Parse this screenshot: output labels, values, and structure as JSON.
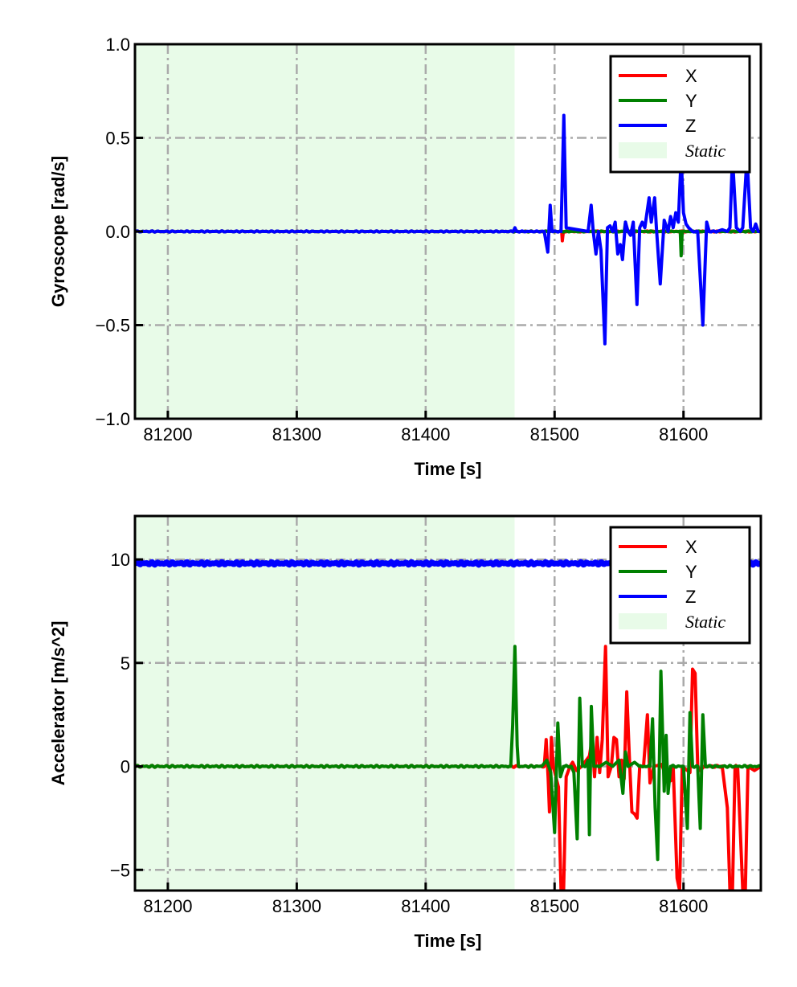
{
  "chart_data": [
    {
      "type": "line",
      "xlabel": "Time [s]",
      "ylabel": "Gyroscope [rad/s]",
      "xlim": [
        81174.5,
        81660
      ],
      "ylim": [
        -1.0,
        1.0
      ],
      "xticks": [
        81200,
        81300,
        81400,
        81500,
        81600
      ],
      "xtick_labels": [
        "81200",
        "81300",
        "81400",
        "81500",
        "81600"
      ],
      "yticks": [
        -1.0,
        -0.5,
        0.0,
        0.5,
        1.0
      ],
      "ytick_labels": [
        "−1.0",
        "−0.5",
        "0.0",
        "0.5",
        "1.0"
      ],
      "grid": true,
      "legend_position": "top-right",
      "static_region": [
        81174.5,
        81469
      ],
      "legend": [
        "X",
        "Y",
        "Z",
        "Static"
      ],
      "colors": {
        "X": "#ff0000",
        "Y": "#008000",
        "Z": "#0000ff",
        "Static": "#e8fbe8"
      },
      "series": [
        {
          "name": "X",
          "baseline": 0,
          "points": [
            [
              81505.5,
              0
            ],
            [
              81506,
              -0.05
            ],
            [
              81506.8,
              0
            ]
          ]
        },
        {
          "name": "Y",
          "baseline": 0,
          "points": [
            [
              81554,
              0
            ],
            [
              81555,
              0.05
            ],
            [
              81556,
              0
            ],
            [
              81597.5,
              0
            ],
            [
              81598.2,
              -0.13
            ],
            [
              81599,
              0
            ]
          ]
        },
        {
          "name": "Z",
          "baseline": 0,
          "points": [
            [
              81468,
              0
            ],
            [
              81469.2,
              0.02
            ],
            [
              81470.5,
              0
            ],
            [
              81492,
              0
            ],
            [
              81494.7,
              -0.11
            ],
            [
              81496.6,
              0.14
            ],
            [
              81498,
              0
            ],
            [
              81505,
              0
            ],
            [
              81507.2,
              0.62
            ],
            [
              81509,
              0.02
            ],
            [
              81526,
              0
            ],
            [
              81528.4,
              0.14
            ],
            [
              81530,
              0
            ],
            [
              81532.1,
              -0.12
            ],
            [
              81534,
              0
            ],
            [
              81536,
              -0.1
            ],
            [
              81539,
              -0.6
            ],
            [
              81541,
              0.02
            ],
            [
              81543,
              0.03
            ],
            [
              81545,
              0
            ],
            [
              81547,
              0.05
            ],
            [
              81549,
              -0.12
            ],
            [
              81551,
              -0.07
            ],
            [
              81552.7,
              -0.15
            ],
            [
              81555,
              0.05
            ],
            [
              81557,
              0
            ],
            [
              81559,
              -0.02
            ],
            [
              81561,
              0.05
            ],
            [
              81563.9,
              -0.39
            ],
            [
              81566,
              0.02
            ],
            [
              81568,
              0.05
            ],
            [
              81570,
              0.02
            ],
            [
              81573.3,
              0.18
            ],
            [
              81575,
              0.05
            ],
            [
              81577.6,
              0.18
            ],
            [
              81579,
              0.02
            ],
            [
              81582,
              -0.28
            ],
            [
              81585,
              0.06
            ],
            [
              81588,
              0
            ],
            [
              81590,
              0.08
            ],
            [
              81592,
              0.02
            ],
            [
              81594,
              0.1
            ],
            [
              81596,
              0.05
            ],
            [
              81598.2,
              0.4
            ],
            [
              81600,
              0.1
            ],
            [
              81602,
              0.04
            ],
            [
              81604,
              0.02
            ],
            [
              81607,
              0
            ],
            [
              81611,
              0
            ],
            [
              81615,
              -0.5
            ],
            [
              81618,
              0.05
            ],
            [
              81620,
              0
            ],
            [
              81626,
              0
            ],
            [
              81630,
              0.01
            ],
            [
              81634,
              0
            ],
            [
              81636,
              0.02
            ],
            [
              81638,
              0.4
            ],
            [
              81641,
              0.02
            ],
            [
              81644,
              0
            ],
            [
              81646,
              0.02
            ],
            [
              81649.3,
              0.4
            ],
            [
              81652,
              0.02
            ],
            [
              81654,
              0
            ],
            [
              81656,
              0.04
            ],
            [
              81658,
              0
            ]
          ]
        }
      ]
    },
    {
      "type": "line",
      "xlabel": "Time [s]",
      "ylabel": "Accelerator [m/s^2]",
      "xlim": [
        81174.5,
        81660
      ],
      "ylim": [
        -6.0,
        12.1
      ],
      "xticks": [
        81200,
        81300,
        81400,
        81500,
        81600
      ],
      "xtick_labels": [
        "81200",
        "81300",
        "81400",
        "81500",
        "81600"
      ],
      "yticks": [
        -5,
        0,
        5,
        10
      ],
      "ytick_labels": [
        "−5",
        "0",
        "5",
        "10"
      ],
      "grid": true,
      "legend_position": "top-right",
      "static_region": [
        81174.5,
        81469
      ],
      "legend": [
        "X",
        "Y",
        "Z",
        "Static"
      ],
      "colors": {
        "X": "#ff0000",
        "Y": "#008000",
        "Z": "#0000ff",
        "Static": "#e8fbe8"
      },
      "series": [
        {
          "name": "X",
          "baseline": 0,
          "points": [
            [
              81492,
              0
            ],
            [
              81493.5,
              1.3
            ],
            [
              81495,
              -0.6
            ],
            [
              81496,
              -2.2
            ],
            [
              81497.5,
              1.4
            ],
            [
              81499,
              0
            ],
            [
              81503,
              -1
            ],
            [
              81505,
              -6
            ],
            [
              81507,
              -6
            ],
            [
              81509,
              -0.5
            ],
            [
              81512,
              0
            ],
            [
              81514,
              0.2
            ],
            [
              81517,
              -0.2
            ],
            [
              81521,
              0
            ],
            [
              81527,
              0.5
            ],
            [
              81529,
              1.3
            ],
            [
              81531,
              -0.5
            ],
            [
              81533,
              1.4
            ],
            [
              81535,
              -0.3
            ],
            [
              81537,
              1.3
            ],
            [
              81539.5,
              5.8
            ],
            [
              81541.5,
              -0.5
            ],
            [
              81544,
              0
            ],
            [
              81546,
              1.4
            ],
            [
              81548,
              1.3
            ],
            [
              81550,
              -0.5
            ],
            [
              81552,
              0.3
            ],
            [
              81554,
              -0.6
            ],
            [
              81556,
              3.6
            ],
            [
              81558,
              0.5
            ],
            [
              81560,
              -2.2
            ],
            [
              81562,
              -2.3
            ],
            [
              81564,
              -2.5
            ],
            [
              81566,
              0
            ],
            [
              81569,
              0
            ],
            [
              81572,
              2.5
            ],
            [
              81574,
              -0.8
            ],
            [
              81577,
              0
            ],
            [
              81583,
              0.1
            ],
            [
              81586,
              -0.4
            ],
            [
              81588,
              -0.3
            ],
            [
              81590,
              -0.7
            ],
            [
              81592,
              0
            ],
            [
              81595,
              -5.4
            ],
            [
              81597,
              -6
            ],
            [
              81599,
              0
            ],
            [
              81603,
              -0.2
            ],
            [
              81605,
              -0.3
            ],
            [
              81607,
              4.7
            ],
            [
              81609,
              4.5
            ],
            [
              81611,
              0
            ],
            [
              81613,
              -0.2
            ],
            [
              81616,
              0
            ],
            [
              81630,
              0
            ],
            [
              81634,
              -2
            ],
            [
              81636,
              -6
            ],
            [
              81638,
              -6
            ],
            [
              81640,
              0
            ],
            [
              81642,
              0
            ],
            [
              81646,
              -6
            ],
            [
              81648,
              -6
            ],
            [
              81650,
              0
            ],
            [
              81655,
              -0.2
            ],
            [
              81660,
              0
            ]
          ]
        },
        {
          "name": "Y",
          "baseline": 0,
          "points": [
            [
              81466,
              0
            ],
            [
              81467.5,
              2
            ],
            [
              81469.2,
              5.8
            ],
            [
              81471,
              1
            ],
            [
              81472,
              0
            ],
            [
              81490,
              0
            ],
            [
              81494,
              0.3
            ],
            [
              81497,
              -0.3
            ],
            [
              81500,
              -3.2
            ],
            [
              81502.5,
              2.1
            ],
            [
              81504.5,
              -0.5
            ],
            [
              81507,
              0
            ],
            [
              81513,
              0
            ],
            [
              81515,
              -0.3
            ],
            [
              81517.5,
              -3.5
            ],
            [
              81519.5,
              3.3
            ],
            [
              81521.5,
              0
            ],
            [
              81524,
              0
            ],
            [
              81526,
              0.3
            ],
            [
              81527,
              -3.3
            ],
            [
              81528.5,
              2.9
            ],
            [
              81530.5,
              0
            ],
            [
              81535,
              0
            ],
            [
              81540,
              0.2
            ],
            [
              81545,
              0
            ],
            [
              81550,
              0.3
            ],
            [
              81553,
              -1.3
            ],
            [
              81555,
              0.7
            ],
            [
              81557,
              0
            ],
            [
              81562,
              0.2
            ],
            [
              81566,
              0
            ],
            [
              81574,
              0
            ],
            [
              81576,
              2.3
            ],
            [
              81578,
              -2
            ],
            [
              81580,
              -4.5
            ],
            [
              81582.5,
              4.6
            ],
            [
              81585,
              -1.2
            ],
            [
              81586.5,
              1.5
            ],
            [
              81588,
              -1.3
            ],
            [
              81590,
              0
            ],
            [
              81600,
              0
            ],
            [
              81603,
              -3
            ],
            [
              81605,
              2.6
            ],
            [
              81607,
              0
            ],
            [
              81611,
              0
            ],
            [
              81613,
              -3
            ],
            [
              81615,
              2.5
            ],
            [
              81617,
              0
            ],
            [
              81660,
              0
            ]
          ]
        },
        {
          "name": "Z",
          "baseline": 9.81,
          "points": []
        }
      ]
    }
  ]
}
